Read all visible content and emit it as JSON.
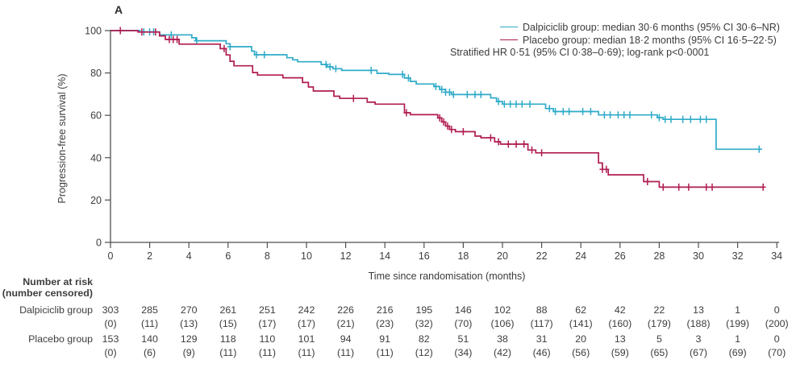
{
  "panel_label": "A",
  "axes": {
    "x_title": "Time since randomisation (months)",
    "y_title": "Progression-free survival (%)"
  },
  "legend": {
    "series": [
      {
        "label": "Dalpiciclib group: median 30·6 months (95% CI 30·6–NR)",
        "color": "#2FABC8"
      },
      {
        "label": "Placebo group: median 18·2 months (95% CI 16·5–22·5)",
        "color": "#B01C52"
      }
    ],
    "note": "Stratified HR 0·51 (95% CI 0·38–0·69); log-rank p<0·0001"
  },
  "chart_data": {
    "type": "line",
    "subtype": "kaplan-meier-step",
    "title": "",
    "xlabel": "Time since randomisation (months)",
    "ylabel": "Progression-free survival (%)",
    "xlim": [
      0,
      34
    ],
    "ylim": [
      0,
      100
    ],
    "x_ticks": [
      0,
      2,
      4,
      6,
      8,
      10,
      12,
      14,
      16,
      18,
      20,
      22,
      24,
      26,
      28,
      30,
      32,
      34
    ],
    "y_ticks": [
      0,
      20,
      40,
      60,
      80,
      100
    ],
    "grid": false,
    "legend_position": "top-right",
    "hr_note": "Stratified HR 0·51 (95% CI 0·38–0·69); log-rank p<0·0001",
    "series": [
      {
        "name": "Dalpiciclib group",
        "color": "#2FABC8",
        "median_months": "30·6",
        "ci_95": "30·6–NR",
        "end_time": 33.25,
        "steps": [
          [
            0,
            100
          ],
          [
            1.5,
            99.4
          ],
          [
            2.5,
            98
          ],
          [
            4.15,
            96.6
          ],
          [
            4.35,
            95.2
          ],
          [
            5.9,
            93.8
          ],
          [
            6.1,
            92.4
          ],
          [
            7.2,
            90.3
          ],
          [
            7.35,
            88.6
          ],
          [
            9,
            87.2
          ],
          [
            9.3,
            86.2
          ],
          [
            9.55,
            85.3
          ],
          [
            10.75,
            84
          ],
          [
            11.05,
            82.9
          ],
          [
            11.35,
            82
          ],
          [
            11.8,
            81.2
          ],
          [
            13.6,
            79.8
          ],
          [
            14.2,
            79.3
          ],
          [
            15,
            77.6
          ],
          [
            15.3,
            76
          ],
          [
            15.6,
            74.8
          ],
          [
            16.5,
            73.6
          ],
          [
            16.8,
            72.2
          ],
          [
            17.1,
            70.9
          ],
          [
            17.4,
            69.8
          ],
          [
            19.4,
            68.2
          ],
          [
            19.7,
            66.5
          ],
          [
            20,
            65.3
          ],
          [
            22.2,
            63.2
          ],
          [
            22.6,
            61.8
          ],
          [
            24.9,
            60.2
          ],
          [
            27.9,
            58.9
          ],
          [
            28.2,
            58.1
          ],
          [
            30.9,
            44
          ]
        ],
        "censor_times": [
          1.7,
          2,
          2.2,
          3.1,
          4.4,
          6.1,
          7.45,
          7.85,
          11,
          11.2,
          11.5,
          13.3,
          14.9,
          15.2,
          16.6,
          16.9,
          17.1,
          17.3,
          17.5,
          18.2,
          18.6,
          18.9,
          19.8,
          20.1,
          20.4,
          20.7,
          21,
          21.4,
          22.4,
          22.7,
          23.1,
          23.4,
          24.1,
          24.5,
          25.2,
          25.5,
          25.9,
          26.2,
          26.5,
          27.6,
          28,
          28.3,
          28.6,
          29.2,
          29.6,
          30.1,
          30.4,
          33.1
        ]
      },
      {
        "name": "Placebo group",
        "color": "#B01C52",
        "median_months": "18·2",
        "ci_95": "16·5–22·5",
        "end_time": 33.35,
        "steps": [
          [
            0,
            100
          ],
          [
            1.4,
            99.3
          ],
          [
            2.5,
            97.5
          ],
          [
            2.8,
            95.8
          ],
          [
            3.5,
            93.6
          ],
          [
            5.6,
            91.5
          ],
          [
            5.9,
            88.5
          ],
          [
            6.1,
            85.5
          ],
          [
            6.3,
            83.4
          ],
          [
            7.25,
            80.2
          ],
          [
            7.5,
            79
          ],
          [
            8.8,
            77.7
          ],
          [
            9.8,
            75.5
          ],
          [
            10.1,
            73.4
          ],
          [
            10.35,
            71.5
          ],
          [
            11.4,
            69
          ],
          [
            11.7,
            68
          ],
          [
            13.1,
            66.2
          ],
          [
            13.5,
            65.3
          ],
          [
            15,
            61.2
          ],
          [
            15.3,
            60.3
          ],
          [
            16.7,
            58.8
          ],
          [
            16.9,
            56.9
          ],
          [
            17.1,
            54.9
          ],
          [
            17.3,
            53.3
          ],
          [
            17.6,
            52.3
          ],
          [
            18.6,
            50.2
          ],
          [
            18.9,
            49.4
          ],
          [
            19.6,
            47.5
          ],
          [
            19.9,
            46.4
          ],
          [
            21.3,
            43.6
          ],
          [
            21.7,
            42.3
          ],
          [
            24.9,
            37.5
          ],
          [
            25.1,
            34.5
          ],
          [
            25.4,
            31.9
          ],
          [
            27.2,
            28.7
          ],
          [
            28,
            26.1
          ]
        ],
        "censor_times": [
          0.5,
          1.6,
          2.3,
          3,
          3.2,
          3.4,
          5.8,
          12.4,
          15.1,
          16.8,
          17,
          17.2,
          17.4,
          18,
          19.4,
          19.8,
          20.3,
          20.7,
          21.1,
          21.5,
          22,
          25.1,
          25.3,
          27.4,
          28.2,
          29,
          29.5,
          30.4,
          30.7,
          33.3
        ]
      }
    ]
  },
  "risk_table": {
    "header_line1": "Number at risk",
    "header_line2": "(number censored)",
    "time_points": [
      0,
      2,
      4,
      6,
      8,
      10,
      12,
      14,
      16,
      18,
      20,
      22,
      24,
      26,
      28,
      30,
      32,
      34
    ],
    "rows": [
      {
        "label": "Dalpiciclib group",
        "at_risk": [
          "303",
          "285",
          "270",
          "261",
          "251",
          "242",
          "226",
          "216",
          "195",
          "146",
          "102",
          "88",
          "62",
          "42",
          "22",
          "13",
          "1",
          "0"
        ],
        "censored": [
          "(0)",
          "(11)",
          "(13)",
          "(15)",
          "(17)",
          "(17)",
          "(21)",
          "(23)",
          "(32)",
          "(70)",
          "(106)",
          "(117)",
          "(141)",
          "(160)",
          "(179)",
          "(188)",
          "(199)",
          "(200)"
        ]
      },
      {
        "label": "Placebo group",
        "at_risk": [
          "153",
          "140",
          "129",
          "118",
          "110",
          "101",
          "94",
          "91",
          "82",
          "51",
          "38",
          "31",
          "20",
          "13",
          "5",
          "3",
          "1",
          "0"
        ],
        "censored": [
          "(0)",
          "(6)",
          "(9)",
          "(11)",
          "(11)",
          "(11)",
          "(11)",
          "(11)",
          "(12)",
          "(34)",
          "(42)",
          "(46)",
          "(56)",
          "(59)",
          "(65)",
          "(67)",
          "(69)",
          "(70)"
        ]
      }
    ]
  }
}
